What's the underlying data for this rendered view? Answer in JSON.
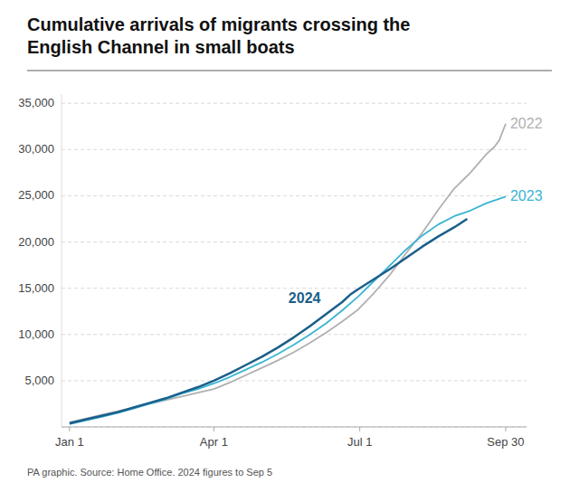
{
  "chart_data": {
    "type": "line",
    "title": "Cumulative arrivals of migrants crossing the\nEnglish Channel in small boats",
    "annotations": [
      "PA graphic. Source: Home Office. 2024 figures to Sep 5"
    ],
    "xlim": [
      -5,
      285
    ],
    "xticks": [
      {
        "value": 0,
        "label": "Jan 1"
      },
      {
        "value": 90,
        "label": "Apr 1"
      },
      {
        "value": 181,
        "label": "Jul 1"
      },
      {
        "value": 272,
        "label": "Sep 30"
      }
    ],
    "ylim": [
      0,
      36000
    ],
    "yticks": [
      {
        "value": 0,
        "label": null
      },
      {
        "value": 5000,
        "label": "5,000"
      },
      {
        "value": 10000,
        "label": "10,000"
      },
      {
        "value": 15000,
        "label": "15,000"
      },
      {
        "value": 20000,
        "label": "20,000"
      },
      {
        "value": 25000,
        "label": "25,000"
      },
      {
        "value": 30000,
        "label": "30,000"
      },
      {
        "value": 35000,
        "label": "35,000"
      }
    ],
    "grid": true,
    "series": [
      {
        "name": "2022",
        "color": "#b0b0b0",
        "x": [
          0,
          10,
          20,
          30,
          40,
          50,
          60,
          70,
          80,
          90,
          100,
          110,
          120,
          130,
          140,
          150,
          160,
          170,
          180,
          190,
          200,
          210,
          220,
          230,
          240,
          250,
          260,
          265,
          268,
          272
        ],
        "values": [
          500,
          900,
          1300,
          1700,
          2100,
          2500,
          2900,
          3300,
          3700,
          4100,
          4800,
          5600,
          6400,
          7200,
          8100,
          9100,
          10200,
          11400,
          12700,
          14500,
          16500,
          18800,
          21000,
          23500,
          25800,
          27500,
          29500,
          30300,
          31000,
          32800
        ]
      },
      {
        "name": "2023",
        "color": "#3ab4d4",
        "x": [
          0,
          10,
          20,
          30,
          40,
          50,
          60,
          70,
          80,
          90,
          100,
          110,
          120,
          130,
          140,
          150,
          160,
          170,
          180,
          190,
          200,
          210,
          220,
          230,
          240,
          250,
          260,
          272
        ],
        "values": [
          300,
          700,
          1100,
          1500,
          2000,
          2500,
          3000,
          3600,
          4100,
          4700,
          5400,
          6200,
          7000,
          7900,
          8900,
          10000,
          11200,
          12600,
          14100,
          15800,
          17500,
          19200,
          20700,
          21900,
          22800,
          23400,
          24200,
          24900
        ]
      },
      {
        "name": "2024",
        "color": "#1a5f8a",
        "x": [
          0,
          10,
          20,
          30,
          40,
          50,
          60,
          70,
          80,
          90,
          100,
          110,
          120,
          130,
          140,
          150,
          160,
          170,
          175,
          180,
          190,
          200,
          210,
          220,
          230,
          240,
          248
        ],
        "values": [
          400,
          800,
          1200,
          1600,
          2100,
          2600,
          3100,
          3700,
          4300,
          5000,
          5800,
          6700,
          7600,
          8600,
          9700,
          10900,
          12200,
          13500,
          14300,
          14900,
          16000,
          17100,
          18300,
          19500,
          20600,
          21600,
          22500
        ]
      }
    ]
  }
}
